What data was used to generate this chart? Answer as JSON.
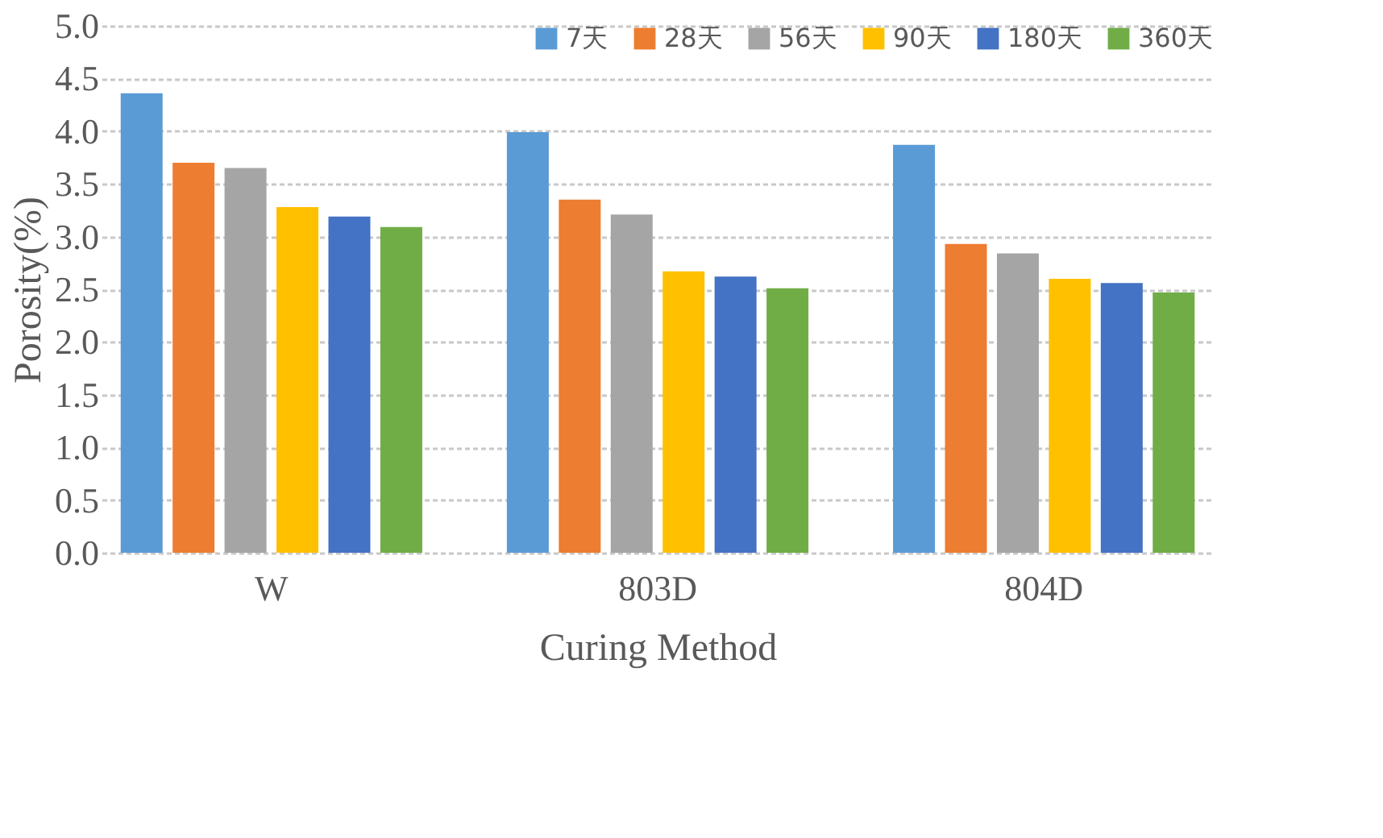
{
  "chart_data": {
    "type": "bar",
    "xlabel": "Curing Method",
    "ylabel": "Porosity(%)",
    "categories": [
      "W",
      "803D",
      "804D"
    ],
    "series": [
      {
        "name": "7天",
        "color": "#5b9bd5",
        "values": [
          4.36,
          3.99,
          3.87
        ]
      },
      {
        "name": "28天",
        "color": "#ed7d31",
        "values": [
          3.7,
          3.35,
          2.93
        ]
      },
      {
        "name": "56天",
        "color": "#a5a5a5",
        "values": [
          3.65,
          3.21,
          2.84
        ]
      },
      {
        "name": "90天",
        "color": "#ffc000",
        "values": [
          3.28,
          2.67,
          2.6
        ]
      },
      {
        "name": "180天",
        "color": "#4472c4",
        "values": [
          3.19,
          2.62,
          2.56
        ]
      },
      {
        "name": "360天",
        "color": "#70ad47",
        "values": [
          3.09,
          2.51,
          2.47
        ]
      }
    ],
    "ylim": [
      0,
      5
    ],
    "yticks": [
      {
        "value": 0,
        "label": "0.0"
      },
      {
        "value": 0.5,
        "label": "0.5"
      },
      {
        "value": 1,
        "label": "1.0"
      },
      {
        "value": 1.5,
        "label": "1.5"
      },
      {
        "value": 2,
        "label": "2.0"
      },
      {
        "value": 2.5,
        "label": "2.5"
      },
      {
        "value": 3,
        "label": "3.0"
      },
      {
        "value": 3.5,
        "label": "3.5"
      },
      {
        "value": 4,
        "label": "4.0"
      },
      {
        "value": 4.5,
        "label": "4.5"
      },
      {
        "value": 5,
        "label": "5.0"
      }
    ],
    "grid": "y",
    "legend": "top right"
  }
}
